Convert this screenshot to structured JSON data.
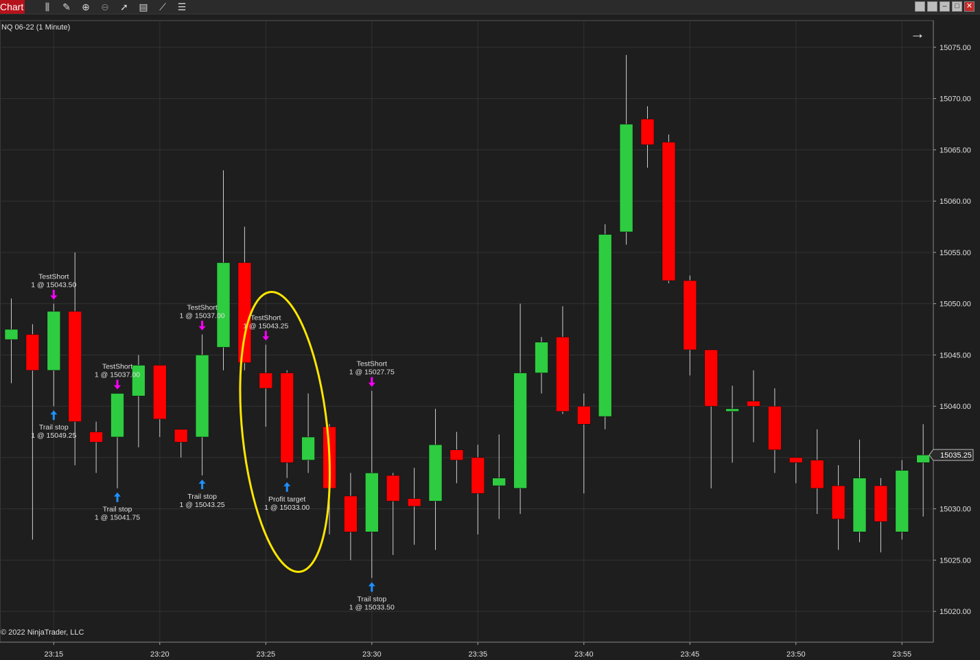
{
  "window": {
    "tab_label": "Chart",
    "toolbar_icons": [
      "bar-style-icon",
      "draw-pencil-icon",
      "zoom-in-icon",
      "zoom-out-icon",
      "pointer-icon",
      "properties-icon",
      "indicators-icon",
      "strategies-icon"
    ],
    "window_buttons": [
      "tile-icon",
      "tile-icon-2",
      "minimize-icon",
      "maximize-icon",
      "close-icon"
    ]
  },
  "chart": {
    "instrument": "NQ 06-22 (1 Minute)",
    "copyright": "© 2022 NinjaTrader, LLC",
    "colors": {
      "background": "#1e1e1e",
      "up": "#2ecc40",
      "down": "#ff0000",
      "grid": "#333333",
      "axis_text": "#e0e0e0",
      "entry_marker": "#ff00ff",
      "exit_marker": "#1e90ff",
      "annotation": "#ffe600"
    },
    "scroll_icon": "arrow-right-icon"
  },
  "chart_data": {
    "type": "candlestick",
    "title": "NQ 06-22 (1 Minute)",
    "y_ticks": [
      "15075.00",
      "15070.00",
      "15065.00",
      "15060.00",
      "15055.00",
      "15050.00",
      "15045.00",
      "15040.00",
      "15035.00",
      "15030.00",
      "15025.00",
      "15020.00"
    ],
    "ylim": [
      15017.0,
      15077.6
    ],
    "x_ticks": [
      "23:15",
      "23:20",
      "23:25",
      "23:30",
      "23:35",
      "23:40",
      "23:45",
      "23:50",
      "23:55"
    ],
    "last_price": "15035.25",
    "candles": [
      {
        "time": "23:13",
        "open": 15046.5,
        "high": 15050.5,
        "low": 15042.25,
        "close": 15047.5
      },
      {
        "time": "23:14",
        "open": 15047.0,
        "high": 15048.0,
        "low": 15027.0,
        "close": 15043.5
      },
      {
        "time": "23:15",
        "open": 15043.5,
        "high": 15050.0,
        "low": 15040.0,
        "close": 15049.25
      },
      {
        "time": "23:16",
        "open": 15049.25,
        "high": 15055.0,
        "low": 15034.25,
        "close": 15038.5
      },
      {
        "time": "23:17",
        "open": 15037.5,
        "high": 15038.5,
        "low": 15033.5,
        "close": 15036.5
      },
      {
        "time": "23:18",
        "open": 15037.0,
        "high": 15041.25,
        "low": 15032.0,
        "close": 15041.25
      },
      {
        "time": "23:19",
        "open": 15041.0,
        "high": 15045.0,
        "low": 15036.0,
        "close": 15044.0
      },
      {
        "time": "23:20",
        "open": 15044.0,
        "high": 15044.0,
        "low": 15037.0,
        "close": 15038.75
      },
      {
        "time": "23:21",
        "open": 15037.75,
        "high": 15037.75,
        "low": 15035.0,
        "close": 15036.5
      },
      {
        "time": "23:22",
        "open": 15037.0,
        "high": 15047.0,
        "low": 15033.25,
        "close": 15045.0
      },
      {
        "time": "23:23",
        "open": 15045.75,
        "high": 15063.0,
        "low": 15043.5,
        "close": 15054.0
      },
      {
        "time": "23:24",
        "open": 15054.0,
        "high": 15057.5,
        "low": 15043.5,
        "close": 15044.25
      },
      {
        "time": "23:25",
        "open": 15043.25,
        "high": 15046.0,
        "low": 15038.0,
        "close": 15041.75
      },
      {
        "time": "23:26",
        "open": 15043.25,
        "high": 15043.5,
        "low": 15033.0,
        "close": 15034.5
      },
      {
        "time": "23:27",
        "open": 15034.75,
        "high": 15041.25,
        "low": 15033.5,
        "close": 15037.0
      },
      {
        "time": "23:28",
        "open": 15038.0,
        "high": 15038.25,
        "low": 15027.5,
        "close": 15032.0
      },
      {
        "time": "23:29",
        "open": 15031.25,
        "high": 15033.5,
        "low": 15025.0,
        "close": 15027.75
      },
      {
        "time": "23:30",
        "open": 15027.75,
        "high": 15041.5,
        "low": 15023.25,
        "close": 15033.5
      },
      {
        "time": "23:31",
        "open": 15033.25,
        "high": 15033.5,
        "low": 15025.5,
        "close": 15030.75
      },
      {
        "time": "23:32",
        "open": 15031.0,
        "high": 15034.0,
        "low": 15026.5,
        "close": 15030.25
      },
      {
        "time": "23:33",
        "open": 15030.75,
        "high": 15039.75,
        "low": 15026.0,
        "close": 15036.25
      },
      {
        "time": "23:34",
        "open": 15035.75,
        "high": 15037.5,
        "low": 15032.5,
        "close": 15034.75
      },
      {
        "time": "23:35",
        "open": 15035.0,
        "high": 15036.25,
        "low": 15027.5,
        "close": 15031.5
      },
      {
        "time": "23:36",
        "open": 15032.25,
        "high": 15037.25,
        "low": 15029.0,
        "close": 15033.0
      },
      {
        "time": "23:37",
        "open": 15032.0,
        "high": 15050.0,
        "low": 15029.5,
        "close": 15043.25
      },
      {
        "time": "23:38",
        "open": 15043.25,
        "high": 15046.75,
        "low": 15041.25,
        "close": 15046.25
      },
      {
        "time": "23:39",
        "open": 15046.75,
        "high": 15049.75,
        "low": 15039.25,
        "close": 15039.5
      },
      {
        "time": "23:40",
        "open": 15040.0,
        "high": 15041.25,
        "low": 15031.5,
        "close": 15038.25
      },
      {
        "time": "23:41",
        "open": 15039.0,
        "high": 15057.75,
        "low": 15037.75,
        "close": 15056.75
      },
      {
        "time": "23:42",
        "open": 15057.0,
        "high": 15074.25,
        "low": 15055.75,
        "close": 15067.5
      },
      {
        "time": "23:43",
        "open": 15068.0,
        "high": 15069.25,
        "low": 15063.25,
        "close": 15065.5
      },
      {
        "time": "23:44",
        "open": 15065.75,
        "high": 15066.5,
        "low": 15052.0,
        "close": 15052.25
      },
      {
        "time": "23:45",
        "open": 15052.25,
        "high": 15052.75,
        "low": 15043.0,
        "close": 15045.5
      },
      {
        "time": "23:46",
        "open": 15045.5,
        "high": 15045.5,
        "low": 15032.0,
        "close": 15040.0
      },
      {
        "time": "23:47",
        "open": 15039.5,
        "high": 15042.0,
        "low": 15034.5,
        "close": 15039.75
      },
      {
        "time": "23:48",
        "open": 15040.5,
        "high": 15043.5,
        "low": 15036.5,
        "close": 15040.0
      },
      {
        "time": "23:49",
        "open": 15040.0,
        "high": 15041.75,
        "low": 15033.5,
        "close": 15035.75
      },
      {
        "time": "23:50",
        "open": 15035.0,
        "high": 15035.0,
        "low": 15032.5,
        "close": 15034.5
      },
      {
        "time": "23:51",
        "open": 15034.75,
        "high": 15037.75,
        "low": 15029.5,
        "close": 15032.0
      },
      {
        "time": "23:52",
        "open": 15032.25,
        "high": 15034.25,
        "low": 15026.0,
        "close": 15029.0
      },
      {
        "time": "23:53",
        "open": 15027.75,
        "high": 15036.75,
        "low": 15026.75,
        "close": 15033.0
      },
      {
        "time": "23:54",
        "open": 15032.25,
        "high": 15033.0,
        "low": 15025.75,
        "close": 15028.75
      },
      {
        "time": "23:55",
        "open": 15027.75,
        "high": 15034.75,
        "low": 15027.0,
        "close": 15033.75
      },
      {
        "time": "23:56",
        "open": 15034.5,
        "high": 15038.25,
        "low": 15029.25,
        "close": 15035.25
      }
    ],
    "executions": [
      {
        "time": "23:15",
        "kind": "entry",
        "name": "TestShort",
        "qty_price": "1 @ 15043.50"
      },
      {
        "time": "23:15",
        "kind": "exit",
        "name": "Trail stop",
        "qty_price": "1 @ 15049.25"
      },
      {
        "time": "23:18",
        "kind": "entry",
        "name": "TestShort",
        "qty_price": "1 @ 15037.00"
      },
      {
        "time": "23:18",
        "kind": "exit",
        "name": "Trail stop",
        "qty_price": "1 @ 15041.75"
      },
      {
        "time": "23:22",
        "kind": "entry",
        "name": "TestShort",
        "qty_price": "1 @ 15037.00"
      },
      {
        "time": "23:22",
        "kind": "exit",
        "name": "Trail stop",
        "qty_price": "1 @ 15043.25"
      },
      {
        "time": "23:25",
        "kind": "entry",
        "name": "TestShort",
        "qty_price": "1 @ 15043.25"
      },
      {
        "time": "23:26",
        "kind": "exit",
        "name": "Profit target",
        "qty_price": "1 @ 15033.00"
      },
      {
        "time": "23:30",
        "kind": "entry",
        "name": "TestShort",
        "qty_price": "1 @ 15027.75"
      },
      {
        "time": "23:30",
        "kind": "exit",
        "name": "Trail stop",
        "qty_price": "1 @ 15033.50"
      }
    ],
    "grid": true
  }
}
